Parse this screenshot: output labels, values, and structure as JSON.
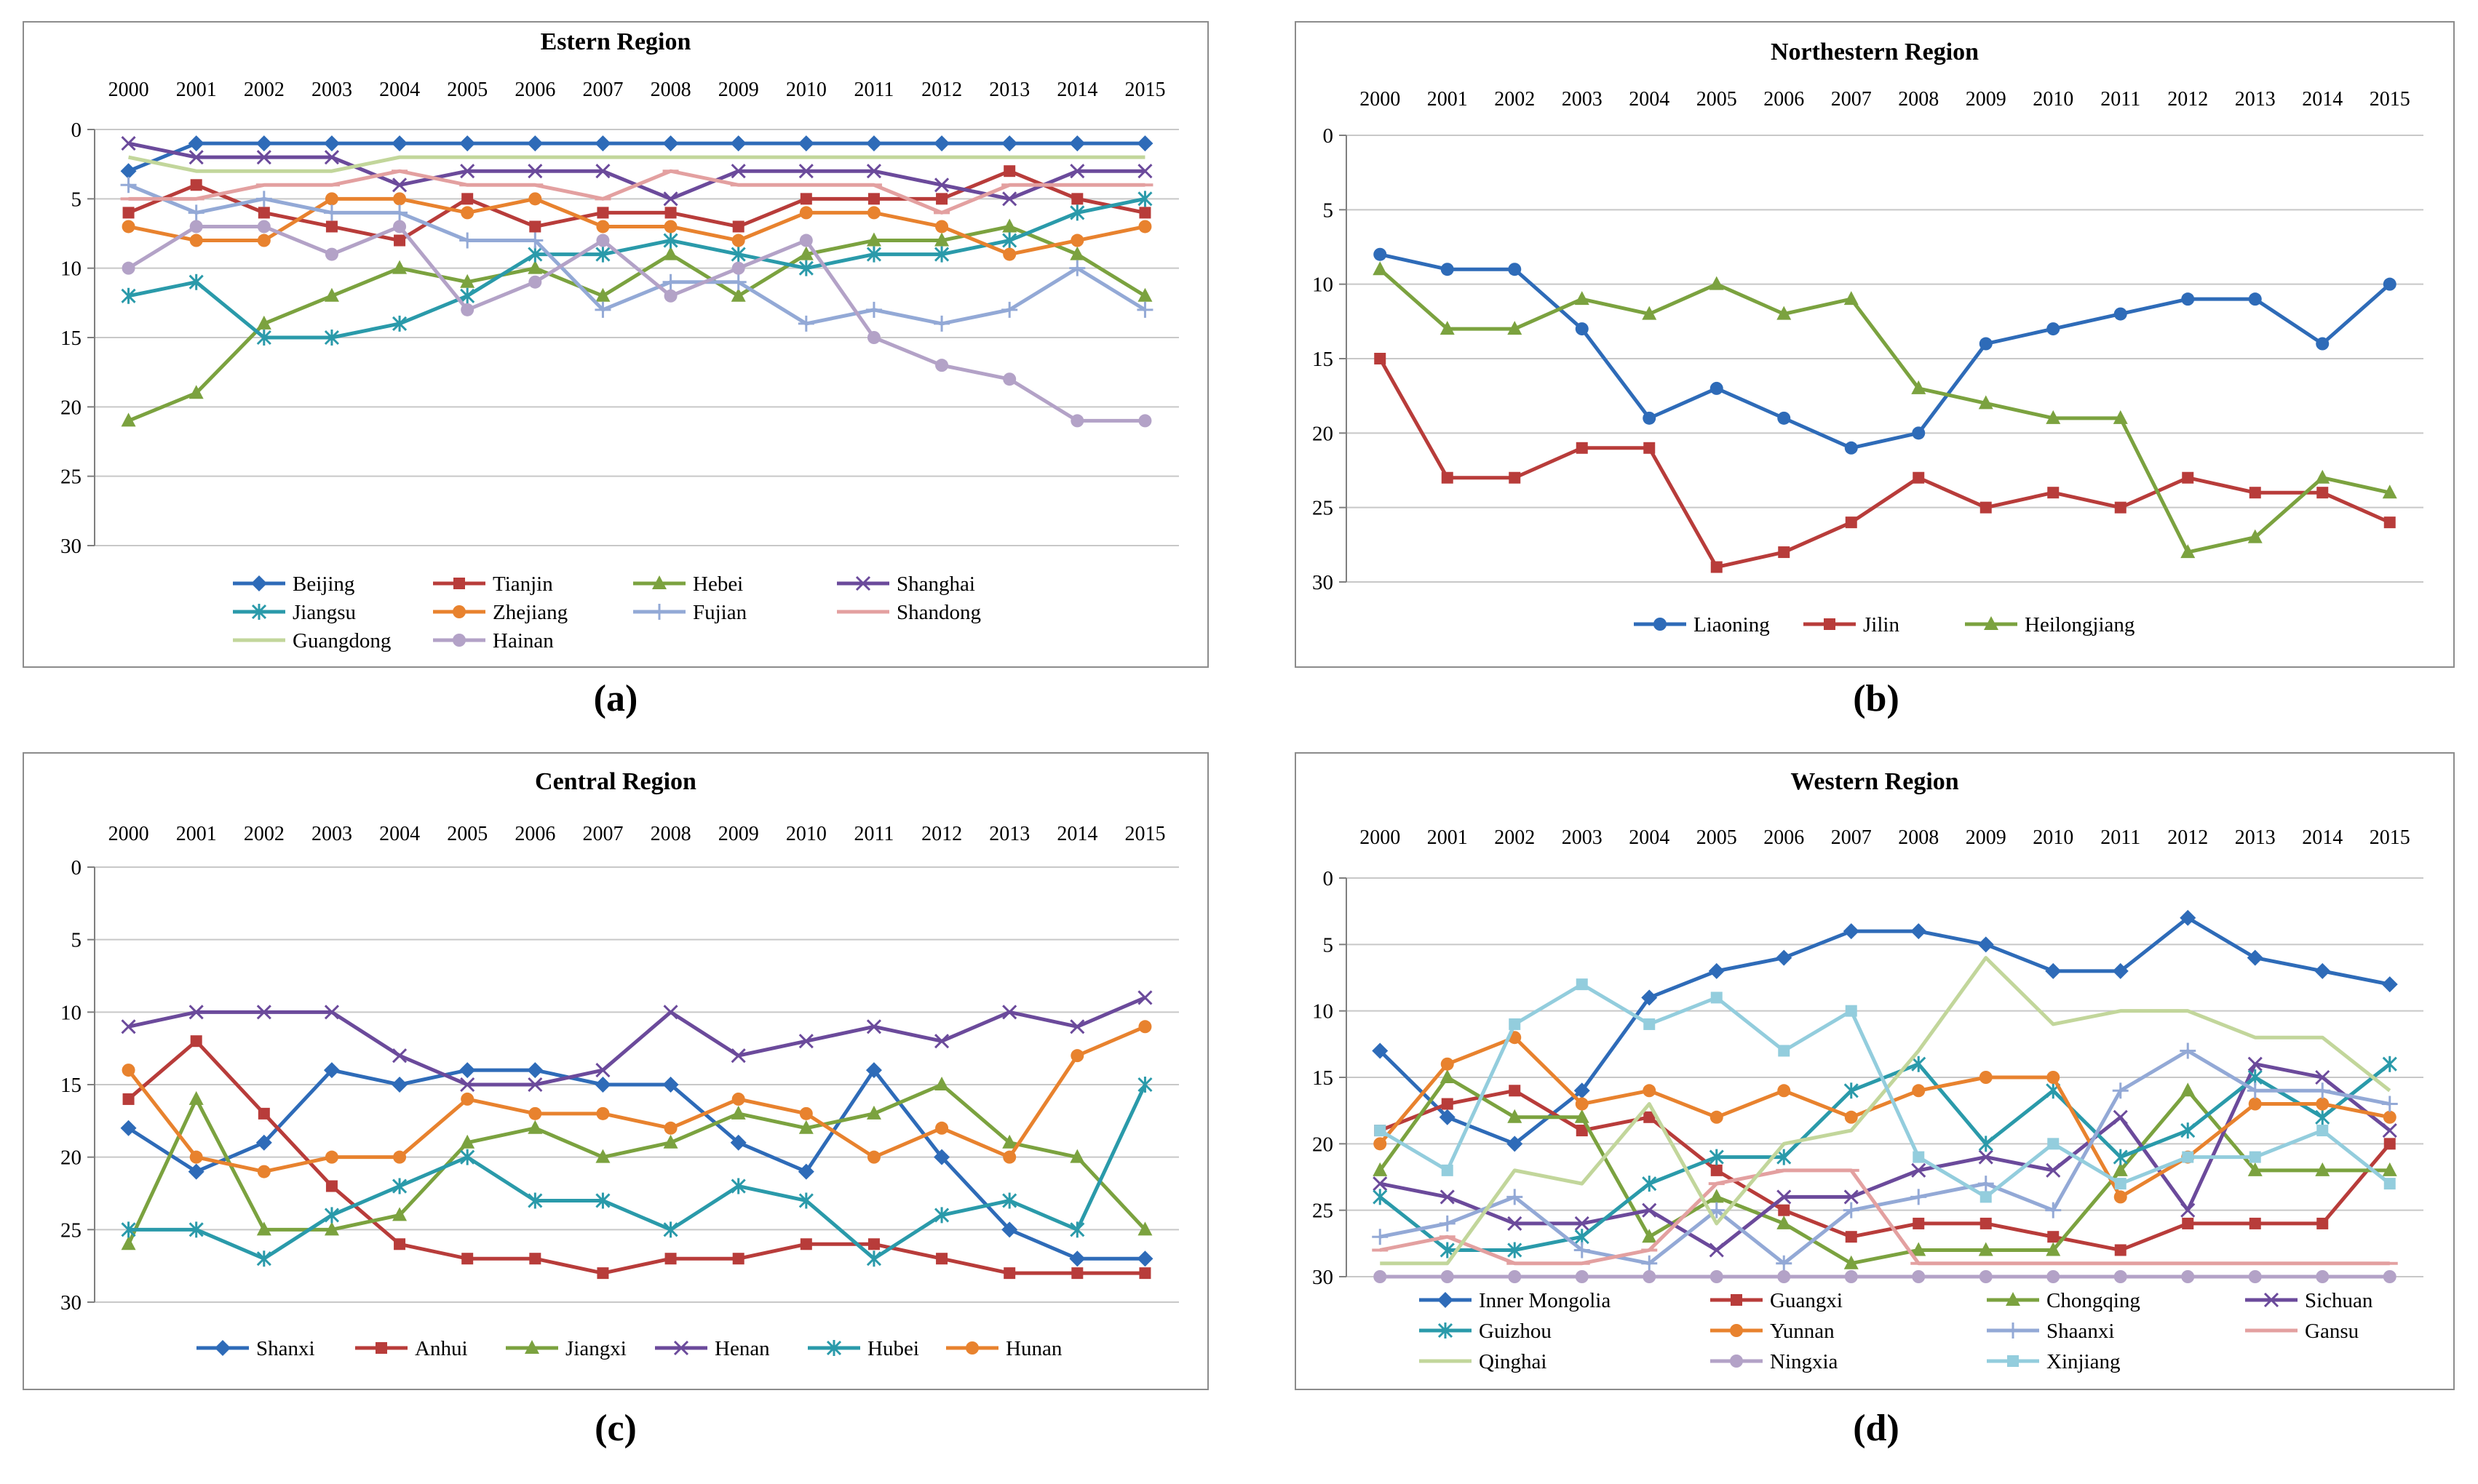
{
  "page": {
    "domain": "Chart"
  },
  "chart_data": [
    {
      "type": "line",
      "panel_label": "(a)",
      "title": "Estern Region",
      "x": [
        "2000",
        "2001",
        "2002",
        "2003",
        "2004",
        "2005",
        "2006",
        "2007",
        "2008",
        "2009",
        "2010",
        "2011",
        "2012",
        "2013",
        "2014",
        "2015"
      ],
      "ylim": [
        0,
        30
      ],
      "y_inverted": true,
      "y_ticks": [
        0,
        5,
        10,
        15,
        20,
        25,
        30
      ],
      "xlabel": "",
      "ylabel": "",
      "legend_position": "bottom",
      "series": [
        {
          "name": "Beijing",
          "color": "#2e6bb8",
          "marker": "diamond",
          "values": [
            3,
            1,
            1,
            1,
            1,
            1,
            1,
            1,
            1,
            1,
            1,
            1,
            1,
            1,
            1,
            1
          ]
        },
        {
          "name": "Tianjin",
          "color": "#b83c3a",
          "marker": "square",
          "values": [
            6,
            4,
            6,
            7,
            8,
            5,
            7,
            6,
            6,
            7,
            5,
            5,
            5,
            3,
            5,
            6
          ]
        },
        {
          "name": "Hebei",
          "color": "#7ba23f",
          "marker": "triangle",
          "values": [
            21,
            19,
            14,
            12,
            10,
            11,
            10,
            12,
            9,
            12,
            9,
            8,
            8,
            7,
            9,
            12
          ]
        },
        {
          "name": "Shanghai",
          "color": "#6b4a9b",
          "marker": "x",
          "values": [
            1,
            2,
            2,
            2,
            4,
            3,
            3,
            3,
            5,
            3,
            3,
            3,
            4,
            5,
            3,
            3
          ]
        },
        {
          "name": "Jiangsu",
          "color": "#2a9aaa",
          "marker": "star",
          "values": [
            12,
            11,
            15,
            15,
            14,
            12,
            9,
            9,
            8,
            9,
            10,
            9,
            9,
            8,
            6,
            5
          ]
        },
        {
          "name": "Zhejiang",
          "color": "#e8822e",
          "marker": "circle",
          "values": [
            7,
            8,
            8,
            5,
            5,
            6,
            5,
            7,
            7,
            8,
            6,
            6,
            7,
            9,
            8,
            7
          ]
        },
        {
          "name": "Fujian",
          "color": "#93a9d6",
          "marker": "plus",
          "values": [
            4,
            6,
            5,
            6,
            6,
            8,
            8,
            13,
            11,
            11,
            14,
            13,
            14,
            13,
            10,
            13
          ]
        },
        {
          "name": "Shandong",
          "color": "#e3a0a0",
          "marker": "dash",
          "values": [
            5,
            5,
            4,
            4,
            3,
            4,
            4,
            5,
            3,
            4,
            4,
            4,
            6,
            4,
            4,
            4
          ]
        },
        {
          "name": "Guangdong",
          "color": "#c2d69b",
          "marker": "none",
          "values": [
            2,
            3,
            3,
            3,
            2,
            2,
            2,
            2,
            2,
            2,
            2,
            2,
            2,
            2,
            2,
            2
          ]
        },
        {
          "name": "Hainan",
          "color": "#b3a2c7",
          "marker": "circle",
          "values": [
            10,
            7,
            7,
            9,
            7,
            13,
            11,
            8,
            12,
            10,
            8,
            15,
            17,
            18,
            21,
            21
          ]
        }
      ]
    },
    {
      "type": "line",
      "panel_label": "(b)",
      "title": "Northestern Region",
      "x": [
        "2000",
        "2001",
        "2002",
        "2003",
        "2004",
        "2005",
        "2006",
        "2007",
        "2008",
        "2009",
        "2010",
        "2011",
        "2012",
        "2013",
        "2014",
        "2015"
      ],
      "ylim": [
        0,
        30
      ],
      "y_inverted": true,
      "y_ticks": [
        0,
        5,
        10,
        15,
        20,
        25,
        30
      ],
      "xlabel": "",
      "ylabel": "",
      "legend_position": "bottom",
      "series": [
        {
          "name": "Liaoning",
          "color": "#2e6bb8",
          "marker": "circle",
          "values": [
            8,
            9,
            9,
            13,
            19,
            17,
            19,
            21,
            20,
            14,
            13,
            12,
            11,
            11,
            14,
            10
          ]
        },
        {
          "name": "Jilin",
          "color": "#b83c3a",
          "marker": "square",
          "values": [
            15,
            23,
            23,
            21,
            21,
            29,
            28,
            26,
            23,
            25,
            24,
            25,
            23,
            24,
            24,
            26
          ]
        },
        {
          "name": "Heilongjiang",
          "color": "#7ba23f",
          "marker": "triangle",
          "values": [
            9,
            13,
            13,
            11,
            12,
            10,
            12,
            11,
            17,
            18,
            19,
            19,
            28,
            27,
            23,
            24
          ]
        }
      ]
    },
    {
      "type": "line",
      "panel_label": "(c)",
      "title": "Central Region",
      "x": [
        "2000",
        "2001",
        "2002",
        "2003",
        "2004",
        "2005",
        "2006",
        "2007",
        "2008",
        "2009",
        "2010",
        "2011",
        "2012",
        "2013",
        "2014",
        "2015"
      ],
      "ylim": [
        0,
        30
      ],
      "y_inverted": true,
      "y_ticks": [
        0,
        5,
        10,
        15,
        20,
        25,
        30
      ],
      "xlabel": "",
      "ylabel": "",
      "legend_position": "bottom",
      "series": [
        {
          "name": "Shanxi",
          "color": "#2e6bb8",
          "marker": "diamond",
          "values": [
            18,
            21,
            19,
            14,
            15,
            14,
            14,
            15,
            15,
            19,
            21,
            14,
            20,
            25,
            27,
            27
          ]
        },
        {
          "name": "Anhui",
          "color": "#b83c3a",
          "marker": "square",
          "values": [
            16,
            12,
            17,
            22,
            26,
            27,
            27,
            28,
            27,
            27,
            26,
            26,
            27,
            28,
            28,
            28
          ]
        },
        {
          "name": "Jiangxi",
          "color": "#7ba23f",
          "marker": "triangle",
          "values": [
            26,
            16,
            25,
            25,
            24,
            19,
            18,
            20,
            19,
            17,
            18,
            17,
            15,
            19,
            20,
            25
          ]
        },
        {
          "name": "Henan",
          "color": "#6b4a9b",
          "marker": "x",
          "values": [
            11,
            10,
            10,
            10,
            13,
            15,
            15,
            14,
            10,
            13,
            12,
            11,
            12,
            10,
            11,
            9
          ]
        },
        {
          "name": "Hubei",
          "color": "#2a9aaa",
          "marker": "star",
          "values": [
            25,
            25,
            27,
            24,
            22,
            20,
            23,
            23,
            25,
            22,
            23,
            27,
            24,
            23,
            25,
            15
          ]
        },
        {
          "name": "Hunan",
          "color": "#e8822e",
          "marker": "circle",
          "values": [
            14,
            20,
            21,
            20,
            20,
            16,
            17,
            17,
            18,
            16,
            17,
            20,
            18,
            20,
            13,
            11
          ]
        }
      ]
    },
    {
      "type": "line",
      "panel_label": "(d)",
      "title": "Western Region",
      "x": [
        "2000",
        "2001",
        "2002",
        "2003",
        "2004",
        "2005",
        "2006",
        "2007",
        "2008",
        "2009",
        "2010",
        "2011",
        "2012",
        "2013",
        "2014",
        "2015"
      ],
      "ylim": [
        0,
        30
      ],
      "y_inverted": true,
      "y_ticks": [
        0,
        5,
        10,
        15,
        20,
        25,
        30
      ],
      "xlabel": "",
      "ylabel": "",
      "legend_position": "bottom",
      "series": [
        {
          "name": "Inner Mongolia",
          "color": "#2e6bb8",
          "marker": "diamond",
          "values": [
            13,
            18,
            20,
            16,
            9,
            7,
            6,
            4,
            4,
            5,
            7,
            7,
            3,
            6,
            7,
            8
          ]
        },
        {
          "name": "Guangxi",
          "color": "#b83c3a",
          "marker": "square",
          "values": [
            19,
            17,
            16,
            19,
            18,
            22,
            25,
            27,
            26,
            26,
            27,
            28,
            26,
            26,
            26,
            20
          ]
        },
        {
          "name": "Chongqing",
          "color": "#7ba23f",
          "marker": "triangle",
          "values": [
            22,
            15,
            18,
            18,
            27,
            24,
            26,
            29,
            28,
            28,
            28,
            22,
            16,
            22,
            22,
            22
          ]
        },
        {
          "name": "Sichuan",
          "color": "#6b4a9b",
          "marker": "x",
          "values": [
            23,
            24,
            26,
            26,
            25,
            28,
            24,
            24,
            22,
            21,
            22,
            18,
            25,
            14,
            15,
            19
          ]
        },
        {
          "name": "Guizhou",
          "color": "#2a9aaa",
          "marker": "star",
          "values": [
            24,
            28,
            28,
            27,
            23,
            21,
            21,
            16,
            14,
            20,
            16,
            21,
            19,
            15,
            18,
            14
          ]
        },
        {
          "name": "Yunnan",
          "color": "#e8822e",
          "marker": "circle",
          "values": [
            20,
            14,
            12,
            17,
            16,
            18,
            16,
            18,
            16,
            15,
            15,
            24,
            21,
            17,
            17,
            18
          ]
        },
        {
          "name": "Shaanxi",
          "color": "#93a9d6",
          "marker": "plus",
          "values": [
            27,
            26,
            24,
            28,
            29,
            25,
            29,
            25,
            24,
            23,
            25,
            16,
            13,
            16,
            16,
            17
          ]
        },
        {
          "name": "Gansu",
          "color": "#e3a0a0",
          "marker": "dash",
          "values": [
            28,
            27,
            29,
            29,
            28,
            23,
            22,
            22,
            29,
            29,
            29,
            29,
            29,
            29,
            29,
            29
          ]
        },
        {
          "name": "Qinghai",
          "color": "#c2d69b",
          "marker": "none",
          "values": [
            29,
            29,
            22,
            23,
            17,
            26,
            20,
            19,
            13,
            6,
            11,
            10,
            10,
            12,
            12,
            16
          ]
        },
        {
          "name": "Ningxia",
          "color": "#b3a2c7",
          "marker": "circle",
          "values": [
            30,
            30,
            30,
            30,
            30,
            30,
            30,
            30,
            30,
            30,
            30,
            30,
            30,
            30,
            30,
            30
          ]
        },
        {
          "name": "Xinjiang",
          "color": "#93cddd",
          "marker": "square",
          "values": [
            19,
            22,
            11,
            8,
            11,
            9,
            13,
            10,
            21,
            24,
            20,
            23,
            21,
            21,
            19,
            23
          ]
        }
      ]
    }
  ]
}
